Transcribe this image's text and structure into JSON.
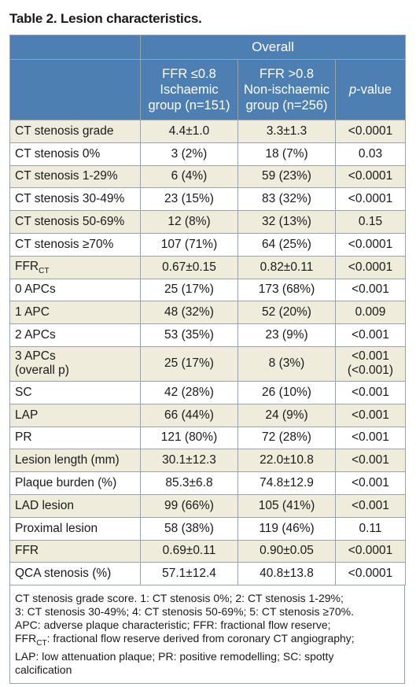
{
  "title": "Table 2. Lesion characteristics.",
  "header": {
    "overall": "Overall",
    "col1": "FFR ≤0.8 Ischaemic group (n=151)",
    "col1_lines": [
      "FFR ≤0.8",
      "Ischaemic",
      "group (n=151)"
    ],
    "col2_lines": [
      "FFR >0.8",
      "Non-ischaemic",
      "group (n=256)"
    ],
    "col3_prefix": "p",
    "col3_suffix": "-value"
  },
  "rows": [
    {
      "label": "CT stenosis grade",
      "isch": "4.4±1.0",
      "non": "3.3±1.3",
      "p": "<0.0001"
    },
    {
      "label": "CT stenosis 0%",
      "isch": "3 (2%)",
      "non": "18 (7%)",
      "p": "0.03"
    },
    {
      "label": "CT stenosis 1-29%",
      "isch": "6 (4%)",
      "non": "59 (23%)",
      "p": "<0.0001"
    },
    {
      "label": "CT stenosis 30-49%",
      "isch": "23 (15%)",
      "non": "83 (32%)",
      "p": "<0.0001"
    },
    {
      "label": "CT stenosis 50-69%",
      "isch": "12 (8%)",
      "non": "32 (13%)",
      "p": "0.15"
    },
    {
      "label": "CT stenosis ≥70%",
      "isch": "107 (71%)",
      "non": "64 (25%)",
      "p": "<0.0001"
    },
    {
      "label": "FFR",
      "label_sub": "CT",
      "isch": "0.67±0.15",
      "non": "0.82±0.11",
      "p": "<0.0001"
    },
    {
      "label": "0 APCs",
      "isch": "25 (17%)",
      "non": "173 (68%)",
      "p": "<0.001"
    },
    {
      "label": "1 APC",
      "isch": "48 (32%)",
      "non": "52 (20%)",
      "p": "0.009"
    },
    {
      "label": "2 APCs",
      "isch": "53 (35%)",
      "non": "23 (9%)",
      "p": "<0.001"
    },
    {
      "label": "3 APCs",
      "label2": "(overall p)",
      "isch": "25 (17%)",
      "non": "8 (3%)",
      "p": "<0.001",
      "p2": "(<0.001)"
    },
    {
      "label": "SC",
      "isch": "42 (28%)",
      "non": "26 (10%)",
      "p": "<0.001"
    },
    {
      "label": "LAP",
      "isch": "66 (44%)",
      "non": "24 (9%)",
      "p": "<0.001"
    },
    {
      "label": "PR",
      "isch": "121 (80%)",
      "non": "72 (28%)",
      "p": "<0.001"
    },
    {
      "label": "Lesion length (mm)",
      "isch": "30.1±12.3",
      "non": "22.0±10.8",
      "p": "<0.001"
    },
    {
      "label": "Plaque burden (%)",
      "isch": "85.3±6.8",
      "non": "74.8±12.9",
      "p": "<0.001"
    },
    {
      "label": "LAD lesion",
      "isch": "99 (66%)",
      "non": "105 (41%)",
      "p": "<0.001"
    },
    {
      "label": "Proximal lesion",
      "isch": "58 (38%)",
      "non": "119 (46%)",
      "p": "0.11"
    },
    {
      "label": "FFR",
      "isch": "0.69±0.11",
      "non": "0.90±0.05",
      "p": "<0.0001"
    },
    {
      "label": "QCA stenosis (%)",
      "isch": "57.1±12.4",
      "non": "40.8±13.8",
      "p": "<0.0001"
    }
  ],
  "footnote": {
    "line1": "CT stenosis grade score. 1: CT stenosis 0%; 2: CT stenosis 1-29%;",
    "line2": "3: CT stenosis 30-49%; 4: CT stenosis 50-69%; 5: CT stenosis ≥70%.",
    "line3": "APC: adverse plaque characteristic; FFR: fractional flow reserve;",
    "line4_prefix": "FFR",
    "line4_sub": "CT",
    "line4_rest": ": fractional flow reserve derived from coronary CT angiography;",
    "line5": "LAP: low attenuation plaque; PR: positive remodelling; SC: spotty",
    "line6": "calcification"
  }
}
